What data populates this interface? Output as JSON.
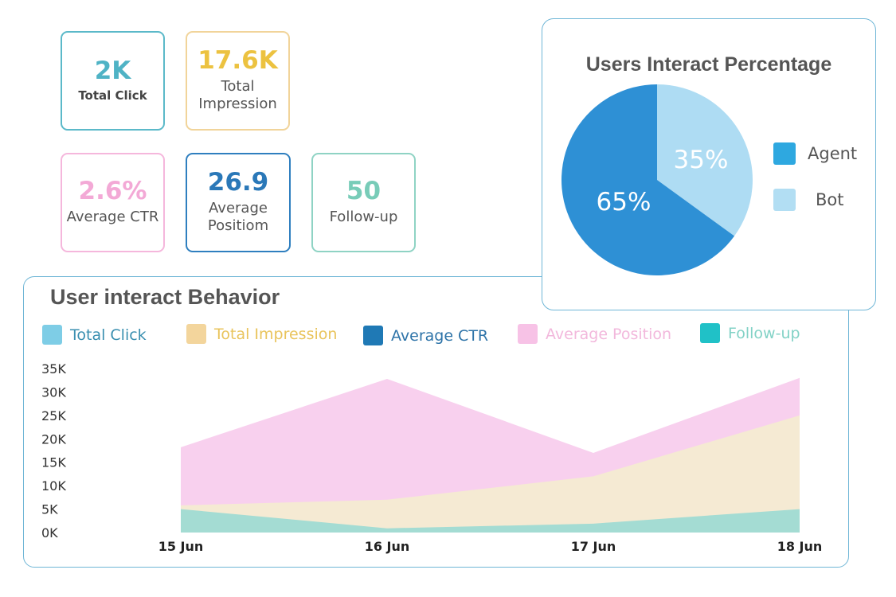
{
  "kpis": {
    "total_click": {
      "value": "2K",
      "label": "Total Click",
      "color": "#4fb3c5"
    },
    "total_impression": {
      "value": "17.6K",
      "label_line1": "Total",
      "label_line2": "Impression",
      "color": "#ecc240"
    },
    "average_ctr": {
      "value": "2.6%",
      "label": "Average CTR",
      "color": "#f3a9d6"
    },
    "average_position": {
      "value": "26.9",
      "label_line1": "Average",
      "label_line2": "Positiom",
      "color": "#2a78b8"
    },
    "follow_up": {
      "value": "50",
      "label": "Follow-up",
      "color": "#78ccb8"
    }
  },
  "behavior": {
    "title": "User interact Behavior"
  },
  "pie": {
    "title": "Users Interact Percentage"
  },
  "chart_data": [
    {
      "type": "area",
      "title": "User interact Behavior",
      "x": [
        "15 Jun",
        "16 Jun",
        "17 Jun",
        "18 Jun"
      ],
      "y_ticks": [
        "0K",
        "5K",
        "10K",
        "15K",
        "20K",
        "25K",
        "30K",
        "35K"
      ],
      "ylim": [
        0,
        35000
      ],
      "stacked": false,
      "grid": false,
      "legend_position": "top",
      "legend": [
        {
          "name": "Total Click",
          "color": "#7ecde6",
          "text_color": "#3a8fb0"
        },
        {
          "name": "Total Impression",
          "color": "#f3d59c",
          "text_color": "#e9c45c"
        },
        {
          "name": "Average CTR",
          "color": "#1f79b5",
          "text_color": "#2d73a8"
        },
        {
          "name": "Average Position",
          "color": "#f7c2e6",
          "text_color": "#f2b8dc"
        },
        {
          "name": "Follow-up",
          "color": "#20c1c7",
          "text_color": "#82d2c6"
        }
      ],
      "series": [
        {
          "name": "Average Position",
          "color": "#f8d0ee",
          "values": [
            18200,
            32800,
            17000,
            33000
          ]
        },
        {
          "name": "Total Impression",
          "color": "#f5ead3",
          "values": [
            5800,
            7000,
            12000,
            25000
          ]
        },
        {
          "name": "Follow-up",
          "color": "#a4dcd3",
          "values": [
            5000,
            900,
            1900,
            5000
          ]
        }
      ]
    },
    {
      "type": "pie",
      "title": "Users Interact Percentage",
      "legend_position": "right",
      "slices": [
        {
          "name": "Agent",
          "value": 65,
          "label": "65%",
          "color": "#2e90d5",
          "legend_color": "#2ea8e0"
        },
        {
          "name": "Bot",
          "value": 35,
          "label": "35%",
          "color": "#aedcf3",
          "legend_color": "#b2def3"
        }
      ]
    }
  ]
}
